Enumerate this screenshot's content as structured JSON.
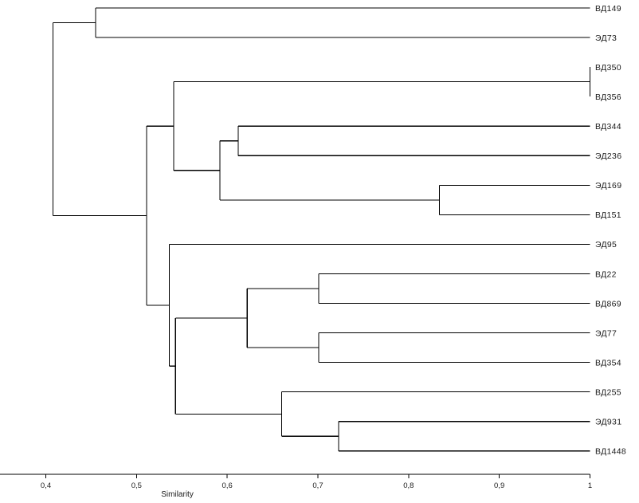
{
  "chart_data": {
    "type": "dendrogram",
    "xlabel": "Similarity",
    "xlim": [
      0.35,
      1.0
    ],
    "ticks": [
      {
        "value": 0.4,
        "label": "0,4"
      },
      {
        "value": 0.5,
        "label": "0,5"
      },
      {
        "value": 0.6,
        "label": "0,6"
      },
      {
        "value": 0.7,
        "label": "0,7"
      },
      {
        "value": 0.8,
        "label": "0,8"
      },
      {
        "value": 0.9,
        "label": "0,9"
      },
      {
        "value": 1.0,
        "label": "1"
      }
    ],
    "leaves": [
      "ВД149",
      "ЭД73",
      "ВД350",
      "ВД356",
      "ВД344",
      "ЭД236",
      "ЭД169",
      "ВД151",
      "ЭД95",
      "ВД22",
      "ВД869",
      "ЭД77",
      "ВД354",
      "ВД255",
      "ЭД931",
      "ВД1448"
    ],
    "merges": [
      {
        "id": "A",
        "children": [
          "ВД149",
          "ЭД73"
        ],
        "similarity": 0.455
      },
      {
        "id": "B",
        "children": [
          "ВД350",
          "ВД356"
        ],
        "similarity": 1.0
      },
      {
        "id": "C",
        "children": [
          "ВД344",
          "ЭД236"
        ],
        "similarity": 0.612
      },
      {
        "id": "D",
        "children": [
          "ЭД169",
          "ВД151"
        ],
        "similarity": 0.834
      },
      {
        "id": "E",
        "children": [
          "C",
          "D"
        ],
        "similarity": 0.592
      },
      {
        "id": "F",
        "children": [
          "B",
          "E"
        ],
        "similarity": 0.541
      },
      {
        "id": "G",
        "children": [
          "ВД22",
          "ВД869"
        ],
        "similarity": 0.701
      },
      {
        "id": "H",
        "children": [
          "ЭД77",
          "ВД354"
        ],
        "similarity": 0.701
      },
      {
        "id": "I",
        "children": [
          "G",
          "H"
        ],
        "similarity": 0.622
      },
      {
        "id": "J",
        "children": [
          "ЭД931",
          "ВД1448"
        ],
        "similarity": 0.723
      },
      {
        "id": "K",
        "children": [
          "ВД255",
          "J"
        ],
        "similarity": 0.66
      },
      {
        "id": "L",
        "children": [
          "I",
          "K"
        ],
        "similarity": 0.543
      },
      {
        "id": "M",
        "children": [
          "ЭД95",
          "L"
        ],
        "similarity": 0.536
      },
      {
        "id": "N",
        "children": [
          "F",
          "M"
        ],
        "similarity": 0.511
      },
      {
        "id": "O",
        "children": [
          "A",
          "N"
        ],
        "similarity": 0.408
      }
    ]
  }
}
